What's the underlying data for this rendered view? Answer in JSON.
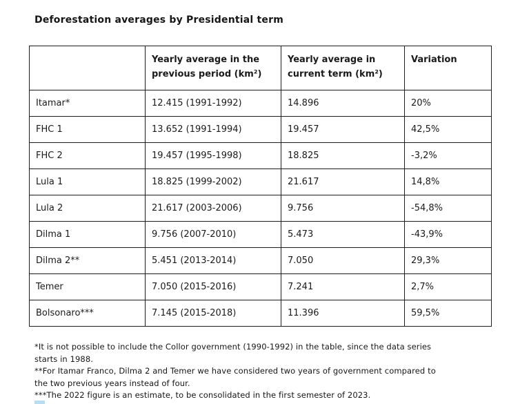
{
  "title": "Deforestation averages by Presidential term",
  "colors": {
    "text": "#1a1a1a",
    "table_border": "#1c1c1c",
    "highlight_fragment": "#badcf0",
    "background": "#ffffff"
  },
  "table": {
    "headers": {
      "term": "",
      "previous": "Yearly average in the previous period (km²)",
      "current": "Yearly average in current term (km²)",
      "variation": "Variation"
    },
    "rows": [
      {
        "term": "Itamar*",
        "previous": "12.415 (1991-1992)",
        "current": "14.896",
        "variation": "20%"
      },
      {
        "term": "FHC 1",
        "previous": "13.652 (1991-1994)",
        "current": "19.457",
        "variation": "42,5%"
      },
      {
        "term": "FHC 2",
        "previous": "19.457 (1995-1998)",
        "current": "18.825",
        "variation": "-3,2%"
      },
      {
        "term": "Lula 1",
        "previous": "18.825 (1999-2002)",
        "current": "21.617",
        "variation": "14,8%"
      },
      {
        "term": "Lula 2",
        "previous": "21.617 (2003-2006)",
        "current": "9.756",
        "variation": "-54,8%"
      },
      {
        "term": "Dilma 1",
        "previous": "9.756 (2007-2010)",
        "current": "5.473",
        "variation": "-43,9%"
      },
      {
        "term": "Dilma 2**",
        "previous": "5.451 (2013-2014)",
        "current": "7.050",
        "variation": "29,3%"
      },
      {
        "term": "Temer",
        "previous": "7.050 (2015-2016)",
        "current": "7.241",
        "variation": "2,7%"
      },
      {
        "term": "Bolsonaro***",
        "previous": "7.145 (2015-2018)",
        "current": "11.396",
        "variation": "59,5%"
      }
    ]
  },
  "footnotes": {
    "lines": [
      "*It is not possible to include the Collor government (1990-1992) in the table, since the data series",
      "starts in 1988.",
      "**For Itamar Franco, Dilma 2 and Temer we have considered two years of government compared to",
      "the two previous years instead of four.",
      "***The 2022 figure is an estimate, to be consolidated in the first semester of 2023."
    ]
  }
}
